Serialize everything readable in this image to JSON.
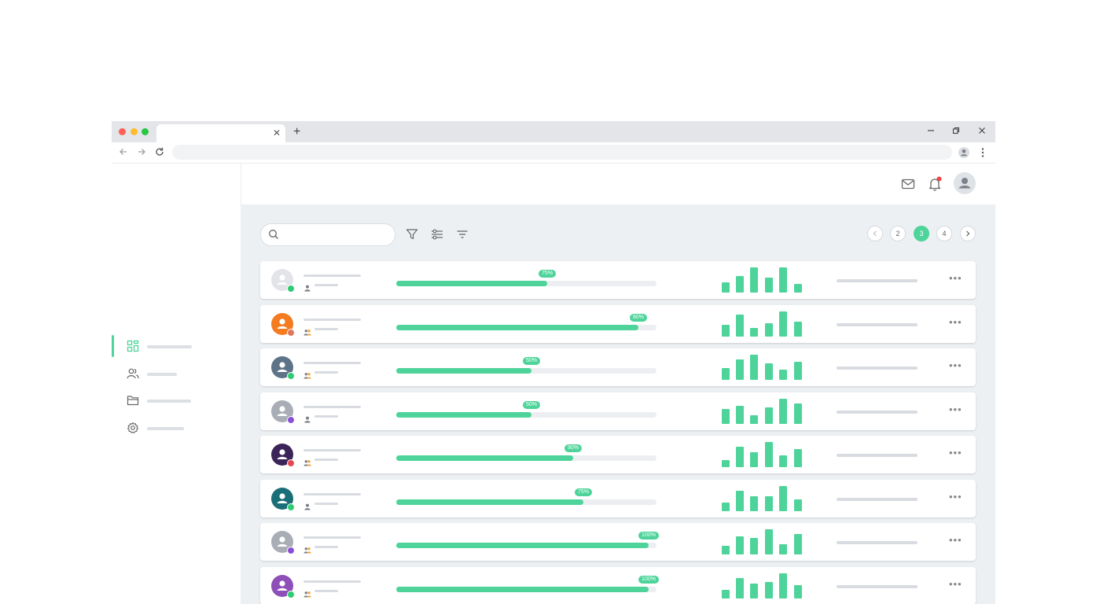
{
  "pagination": {
    "pages": [
      "2",
      "3",
      "4"
    ],
    "current": "3"
  },
  "colors": {
    "accent": "#4ed49a",
    "content_bg": "#edf0f3"
  },
  "sidebar": {
    "items": [
      {
        "icon": "dashboard-icon",
        "active": true
      },
      {
        "icon": "users-icon",
        "active": false
      },
      {
        "icon": "folder-icon",
        "active": false
      },
      {
        "icon": "settings-icon",
        "active": false
      }
    ]
  },
  "header": {
    "icons": [
      "mail-icon",
      "bell-icon",
      "avatar-icon"
    ],
    "notification_dot": true
  },
  "toolbar": {
    "icons": [
      "search-icon",
      "filter-icon",
      "sliders-icon",
      "sort-icon"
    ]
  },
  "rows": [
    {
      "avatar_color": "#e2e4e8",
      "status_color": "#2ecc71",
      "sub_icon": "user-icon",
      "progress": 0.58,
      "label": "75%",
      "bars": [
        12,
        20,
        30,
        18,
        30,
        10
      ]
    },
    {
      "avatar_color": "#f47b20",
      "status_color": "#e0765a",
      "sub_icon": "group-icon",
      "progress": 0.93,
      "label": "80%",
      "bars": [
        14,
        26,
        10,
        16,
        30,
        18
      ]
    },
    {
      "avatar_color": "#5d7388",
      "status_color": "#2ecc71",
      "sub_icon": "group-icon",
      "progress": 0.52,
      "label": "50%",
      "bars": [
        14,
        24,
        30,
        20,
        12,
        22
      ]
    },
    {
      "avatar_color": "#a9adb5",
      "status_color": "#8a4fd8",
      "sub_icon": "user-icon",
      "progress": 0.52,
      "label": "50%",
      "bars": [
        18,
        22,
        10,
        20,
        30,
        24
      ]
    },
    {
      "avatar_color": "#3b2458",
      "status_color": "#e5484d",
      "sub_icon": "group-icon",
      "progress": 0.68,
      "label": "90%",
      "bars": [
        8,
        24,
        18,
        30,
        14,
        22
      ]
    },
    {
      "avatar_color": "#1a6e78",
      "status_color": "#2ecc71",
      "sub_icon": "user-icon",
      "progress": 0.72,
      "label": "75%",
      "bars": [
        10,
        24,
        18,
        18,
        30,
        14
      ]
    },
    {
      "avatar_color": "#a9adb5",
      "status_color": "#8a4fd8",
      "sub_icon": "group-icon",
      "progress": 0.97,
      "label": "100%",
      "bars": [
        10,
        22,
        20,
        30,
        12,
        24
      ]
    },
    {
      "avatar_color": "#8e4fb8",
      "status_color": "#2ecc71",
      "sub_icon": "group-icon",
      "progress": 0.97,
      "label": "100%",
      "bars": [
        10,
        24,
        18,
        20,
        30,
        16
      ]
    }
  ]
}
